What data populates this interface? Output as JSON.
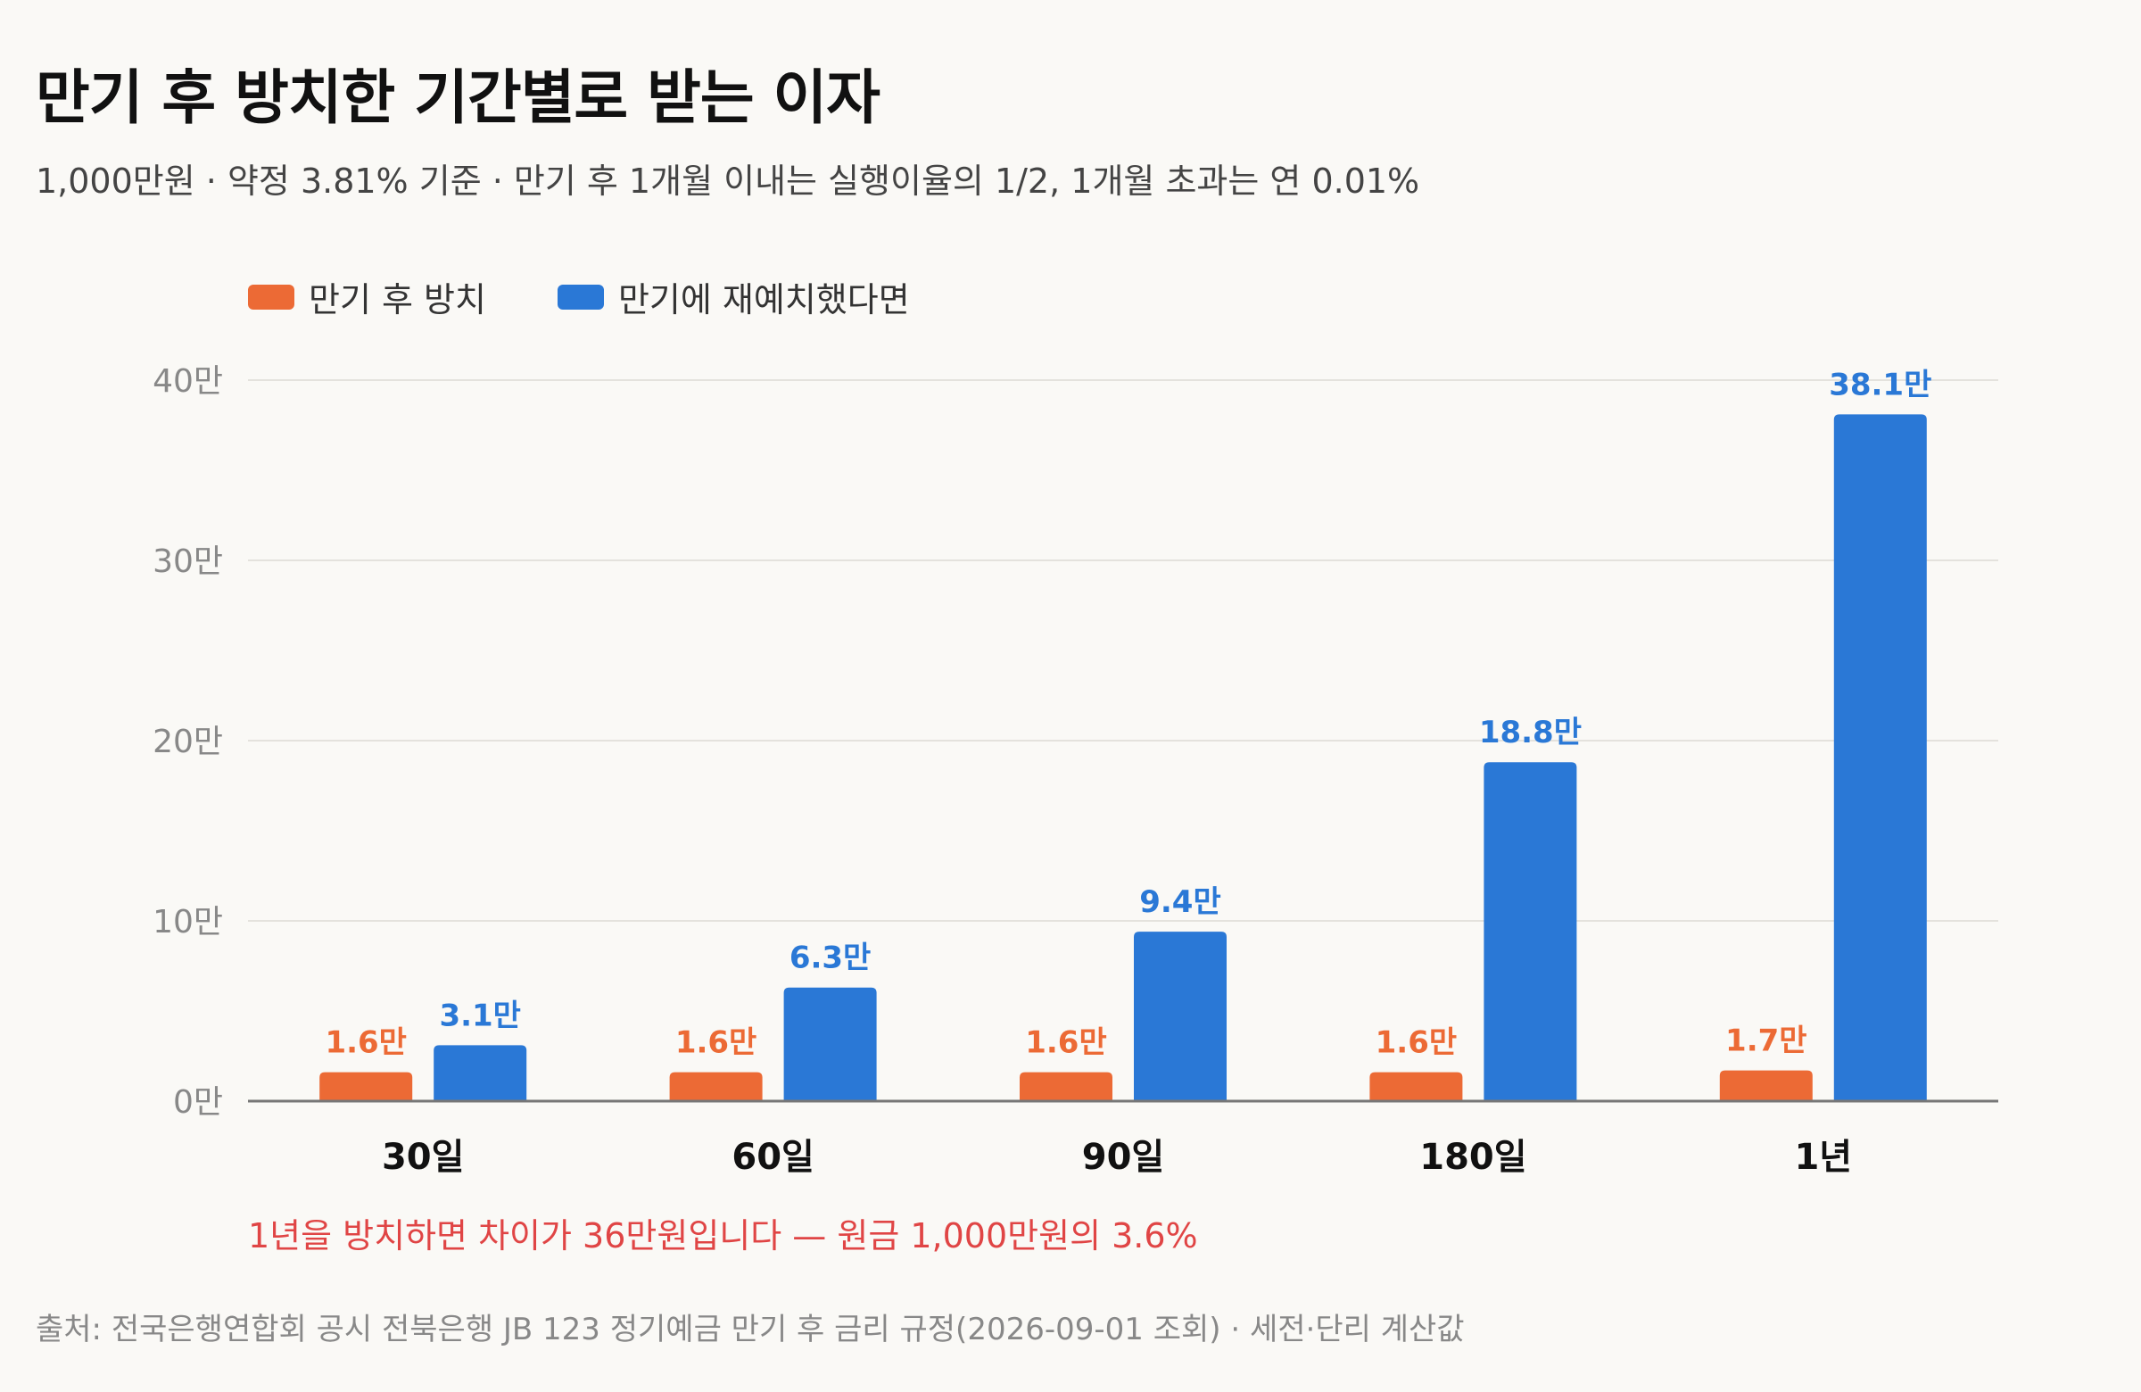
{
  "title": "만기 후 방치한 기간별로 받는 이자",
  "subtitle": "1,000만원 · 약정 3.81% 기준 · 만기 후 1개월 이내는 실행이율의 1/2, 1개월 초과는 연 0.01%",
  "callout": "1년을 방치하면 차이가 36만원입니다 — 원금 1,000만원의 3.6%",
  "source": "출처: 전국은행연합회 공시 전북은행 JB 123 정기예금 만기 후 금리 규정(2026-09-01 조회) · 세전·단리 계산값",
  "colors": {
    "orange": "#ec6a35",
    "blue": "#2a78d6",
    "background": "#faf9f6"
  },
  "chart_data": {
    "type": "bar",
    "categories": [
      "30일",
      "60일",
      "90일",
      "180일",
      "1년"
    ],
    "series": [
      {
        "name": "만기 후 방치",
        "color": "#ec6a35",
        "values": [
          1.6,
          1.6,
          1.6,
          1.6,
          1.7
        ],
        "labels": [
          "1.6만",
          "1.6만",
          "1.6만",
          "1.6만",
          "1.7만"
        ]
      },
      {
        "name": "만기에 재예치했다면",
        "color": "#2a78d6",
        "values": [
          3.1,
          6.3,
          9.4,
          18.8,
          38.1
        ],
        "labels": [
          "3.1만",
          "6.3만",
          "9.4만",
          "18.8만",
          "38.1만"
        ]
      }
    ],
    "yticks": [
      0,
      10,
      20,
      30,
      40
    ],
    "ytick_labels": [
      "0만",
      "10만",
      "20만",
      "30만",
      "40만"
    ],
    "ylim": [
      0,
      40
    ],
    "grid": true,
    "legend_position": "top-left"
  }
}
